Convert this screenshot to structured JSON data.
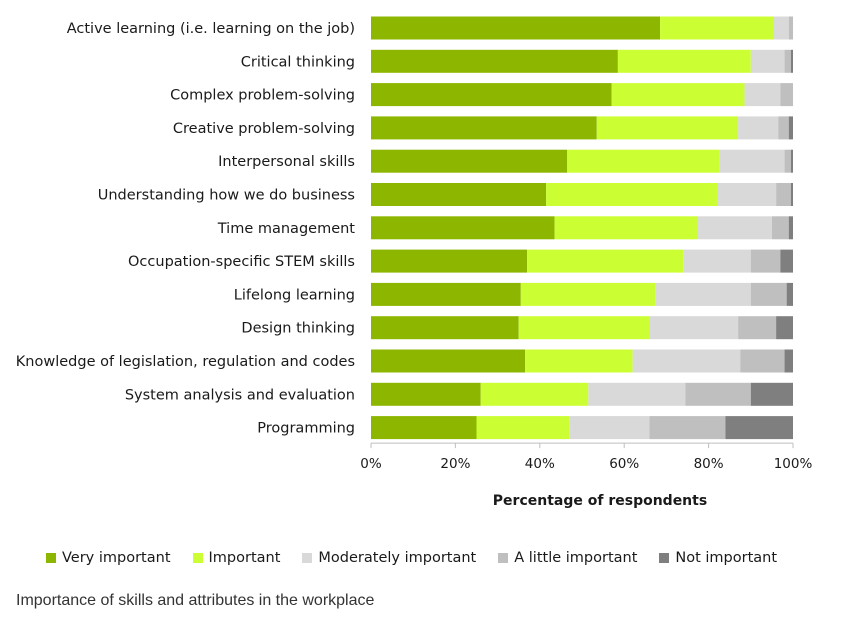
{
  "chart_data": {
    "type": "bar",
    "orientation": "horizontal",
    "stacked": true,
    "xlabel": "Percentage of respondents",
    "xlim": [
      0,
      100
    ],
    "xticks": [
      "0%",
      "20%",
      "40%",
      "60%",
      "80%",
      "100%"
    ],
    "legend_position": "bottom",
    "grid": false,
    "categories": [
      "Active learning (i.e. learning on the job)",
      "Critical thinking",
      "Complex problem-solving",
      "Creative problem-solving",
      "Interpersonal skills",
      "Understanding how we do business",
      "Time management",
      "Occupation-specific STEM skills",
      "Lifelong learning",
      "Design thinking",
      "Knowledge of legislation, regulation and codes",
      "System analysis and evaluation",
      "Programming"
    ],
    "series": [
      {
        "name": "Very important",
        "color": "#8db600",
        "values": [
          68.5,
          58.5,
          57,
          53.5,
          46.5,
          41.5,
          43.5,
          37,
          35.5,
          35,
          36.5,
          26,
          25
        ]
      },
      {
        "name": "Important",
        "color": "#ccff33",
        "values": [
          27,
          31.5,
          31.5,
          33.5,
          36,
          40.5,
          34,
          37,
          32,
          31,
          25.5,
          25.5,
          22
        ]
      },
      {
        "name": "Moderately important",
        "color": "#d9d9d9",
        "values": [
          3.5,
          8,
          8.5,
          9.5,
          15.5,
          14,
          17.5,
          16,
          22.5,
          21,
          25.5,
          23,
          19
        ]
      },
      {
        "name": "A little important",
        "color": "#bfbfbf",
        "values": [
          1,
          1.5,
          3,
          2.5,
          1.5,
          3.5,
          4,
          7,
          8.5,
          9,
          10.5,
          15.5,
          18
        ]
      },
      {
        "name": "Not important",
        "color": "#7f7f7f",
        "values": [
          0,
          0.5,
          0,
          1,
          0.5,
          0.5,
          1,
          3,
          1.5,
          4,
          2,
          10,
          16
        ]
      }
    ]
  },
  "caption": "Importance of skills and attributes in the workplace"
}
